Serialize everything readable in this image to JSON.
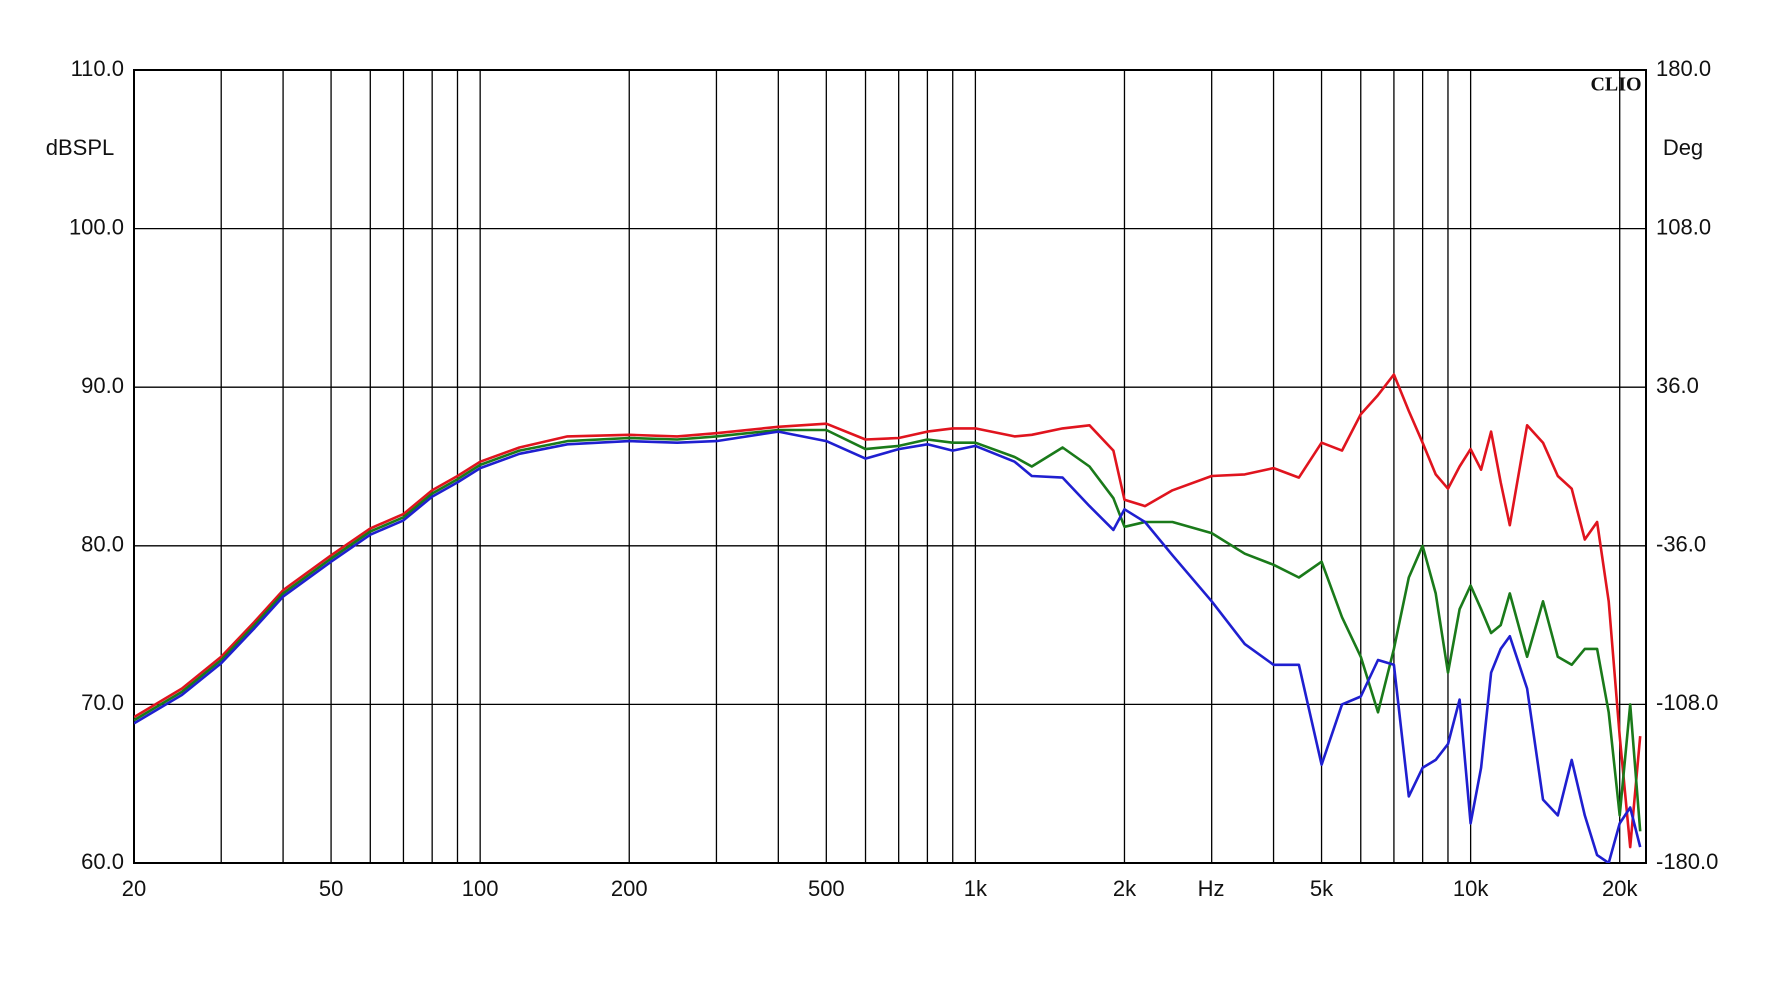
{
  "chart_data": {
    "type": "line",
    "annotation": "CLIO",
    "ylabel": "dBSPL",
    "y2label": "Deg",
    "xlabel": "Hz",
    "xscale": "log",
    "grid": true,
    "xlim": [
      20,
      22600
    ],
    "ylim": [
      60,
      110
    ],
    "y2lim": [
      -180,
      180
    ],
    "xticks": [
      20,
      50,
      100,
      200,
      500,
      {
        "value": 1000,
        "label": "1k"
      },
      {
        "value": 2000,
        "label": "2k"
      },
      {
        "value": 5000,
        "label": "5k"
      },
      {
        "value": 10000,
        "label": "10k"
      },
      {
        "value": 20000,
        "label": "20k"
      }
    ],
    "xminor_ticks": [
      30,
      40,
      60,
      70,
      80,
      90,
      300,
      400,
      600,
      700,
      800,
      900,
      3000,
      4000,
      6000,
      7000,
      8000,
      9000
    ],
    "yticks": [
      {
        "value": 60,
        "label": "60.0"
      },
      {
        "value": 70,
        "label": "70.0"
      },
      {
        "value": 80,
        "label": "80.0"
      },
      {
        "value": 90,
        "label": "90.0"
      },
      {
        "value": 100,
        "label": "100.0"
      },
      {
        "value": 110,
        "label": "110.0"
      }
    ],
    "y2ticks": [
      {
        "value": 180,
        "label": "180.0"
      },
      {
        "value": 108,
        "label": "108.0"
      },
      {
        "value": 36,
        "label": "36.0"
      },
      {
        "value": -36,
        "label": "-36.0"
      },
      {
        "value": -108,
        "label": "-108.0"
      },
      {
        "value": -180,
        "label": "-180.0"
      }
    ],
    "x": [
      20,
      25,
      30,
      35,
      40,
      50,
      60,
      70,
      80,
      90,
      100,
      120,
      150,
      200,
      250,
      300,
      400,
      500,
      600,
      700,
      800,
      900,
      1000,
      1200,
      1300,
      1500,
      1700,
      1900,
      2000,
      2200,
      2500,
      3000,
      3500,
      4000,
      4500,
      5000,
      5500,
      6000,
      6500,
      7000,
      7500,
      8000,
      8500,
      9000,
      9500,
      10000,
      10500,
      11000,
      11500,
      12000,
      13000,
      14000,
      15000,
      16000,
      17000,
      18000,
      19000,
      20000,
      21000,
      22000
    ],
    "series": [
      {
        "color": "#e0141e",
        "values": [
          69.2,
          71.0,
          73.0,
          75.2,
          77.2,
          79.4,
          81.1,
          82.0,
          83.5,
          84.4,
          85.3,
          86.2,
          86.9,
          87.0,
          86.9,
          87.1,
          87.5,
          87.7,
          86.7,
          86.8,
          87.2,
          87.4,
          87.4,
          86.9,
          87.0,
          87.4,
          87.6,
          86.0,
          82.9,
          82.5,
          83.5,
          84.4,
          84.5,
          84.9,
          84.3,
          86.5,
          86.0,
          88.3,
          89.5,
          90.8,
          88.5,
          86.5,
          84.5,
          83.6,
          85.0,
          86.1,
          84.8,
          87.2,
          84.0,
          81.3,
          87.6,
          86.5,
          84.4,
          83.6,
          80.4,
          81.5,
          76.5,
          68.0,
          61.0,
          68.0
        ]
      },
      {
        "color": "#1a7a1a",
        "values": [
          69.0,
          70.8,
          72.8,
          75.0,
          77.0,
          79.2,
          80.9,
          81.8,
          83.3,
          84.2,
          85.1,
          86.0,
          86.6,
          86.8,
          86.7,
          86.9,
          87.3,
          87.3,
          86.1,
          86.3,
          86.7,
          86.5,
          86.5,
          85.6,
          85.0,
          86.2,
          85.0,
          83.0,
          81.2,
          81.5,
          81.5,
          80.8,
          79.5,
          78.8,
          78.0,
          79.0,
          75.5,
          73.0,
          69.5,
          73.5,
          78.0,
          80.0,
          77.0,
          72.0,
          76.0,
          77.5,
          76.0,
          74.5,
          75.0,
          77.0,
          73.0,
          76.5,
          73.0,
          72.5,
          73.5,
          73.5,
          69.5,
          63.0,
          70.0,
          62.0
        ]
      },
      {
        "color": "#1f1fd0",
        "values": [
          68.8,
          70.6,
          72.6,
          74.8,
          76.8,
          79.0,
          80.7,
          81.6,
          83.1,
          84.0,
          84.9,
          85.8,
          86.4,
          86.6,
          86.5,
          86.6,
          87.2,
          86.6,
          85.5,
          86.1,
          86.4,
          86.0,
          86.3,
          85.3,
          84.4,
          84.3,
          82.5,
          81.0,
          82.3,
          81.5,
          79.4,
          76.5,
          73.8,
          72.5,
          72.5,
          66.2,
          70.0,
          70.5,
          72.8,
          72.5,
          64.2,
          66.0,
          66.5,
          67.5,
          70.3,
          62.5,
          66.0,
          72.0,
          73.5,
          74.3,
          71.0,
          64.0,
          63.0,
          66.5,
          63.0,
          60.5,
          60.0,
          62.5,
          63.5,
          61.0
        ]
      }
    ]
  }
}
